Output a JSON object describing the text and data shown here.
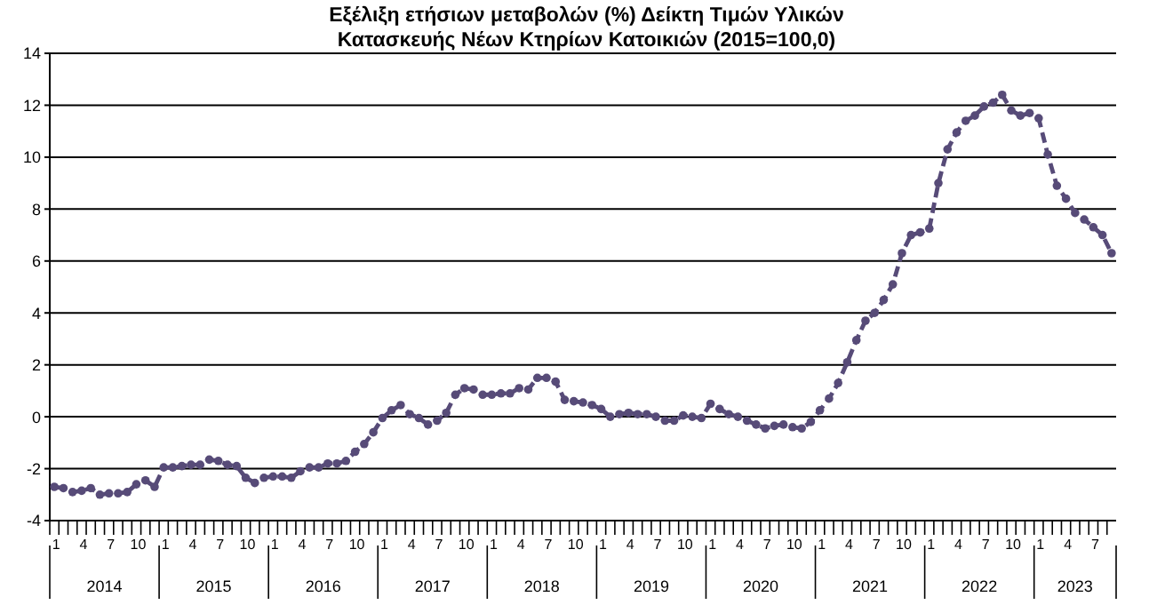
{
  "chart_data": {
    "type": "line",
    "title": "Εξέλιξη ετήσιων μεταβολών (%) Δείκτη Τιμών Υλικών",
    "subtitle": "Κατασκευής Νέων Κτηρίων Κατοικιών (2015=100,0)",
    "categories": [
      "1",
      null,
      null,
      "4",
      null,
      null,
      "7",
      null,
      null,
      "10",
      null,
      null,
      "1",
      null,
      null,
      "4",
      null,
      null,
      "7",
      null,
      null,
      "10",
      null,
      null,
      "1",
      null,
      null,
      "4",
      null,
      null,
      "7",
      null,
      null,
      "10",
      null,
      null,
      "1",
      null,
      null,
      "4",
      null,
      null,
      "7",
      null,
      null,
      "10",
      null,
      null,
      "1",
      null,
      null,
      "4",
      null,
      null,
      "7",
      null,
      null,
      "10",
      null,
      null,
      "1",
      null,
      null,
      "4",
      null,
      null,
      "7",
      null,
      null,
      "10",
      null,
      null,
      "1",
      null,
      null,
      "4",
      null,
      null,
      "7",
      null,
      null,
      "10",
      null,
      null,
      "1",
      null,
      null,
      "4",
      null,
      null,
      "7",
      null,
      null,
      "10",
      null,
      null,
      "1",
      null,
      null,
      "4",
      null,
      null,
      "7",
      null,
      null,
      "10",
      null,
      null,
      "1",
      null,
      null,
      "4",
      null,
      null,
      "7",
      null,
      null
    ],
    "annotations": [
      "2014",
      "2015",
      "2016",
      "2017",
      "2018",
      "2019",
      "2020",
      "2021",
      "2022",
      "2023"
    ],
    "series": [
      {
        "color": "#574b78",
        "values": [
          -2.7,
          -2.75,
          -2.9,
          -2.85,
          -2.75,
          -3.0,
          -2.95,
          -2.95,
          -2.9,
          -2.6,
          -2.45,
          -2.7,
          -1.95,
          -1.95,
          -1.9,
          -1.85,
          -1.85,
          -1.65,
          -1.7,
          -1.85,
          -1.9,
          -2.35,
          -2.55,
          -2.35,
          -2.3,
          -2.3,
          -2.35,
          -2.1,
          -1.95,
          -1.95,
          -1.8,
          -1.8,
          -1.7,
          -1.35,
          -1.05,
          -0.6,
          -0.05,
          0.25,
          0.45,
          0.1,
          -0.05,
          -0.3,
          -0.15,
          0.15,
          0.85,
          1.1,
          1.05,
          0.85,
          0.85,
          0.9,
          0.9,
          1.1,
          1.05,
          1.5,
          1.5,
          1.35,
          0.65,
          0.6,
          0.55,
          0.45,
          0.3,
          0.0,
          0.1,
          0.15,
          0.1,
          0.1,
          0.0,
          -0.15,
          -0.15,
          0.05,
          0.0,
          -0.05,
          0.5,
          0.3,
          0.1,
          0.0,
          -0.15,
          -0.3,
          -0.45,
          -0.35,
          -0.3,
          -0.4,
          -0.45,
          -0.2,
          0.25,
          0.7,
          1.3,
          2.1,
          2.95,
          3.7,
          4.0,
          4.5,
          5.1,
          6.3,
          7.0,
          7.1,
          7.25,
          9.0,
          10.3,
          10.95,
          11.4,
          11.6,
          11.95,
          12.1,
          12.4,
          11.8,
          11.6,
          11.7,
          11.5,
          10.1,
          8.9,
          8.4,
          7.85,
          7.6,
          7.3,
          7.0,
          6.3
        ]
      }
    ],
    "ylim": [
      -4,
      14
    ],
    "yticks": [
      -4,
      -2,
      0,
      2,
      4,
      6,
      8,
      10,
      12,
      14
    ],
    "grid": "y",
    "legend": false,
    "marker": "circle",
    "line_style": "dashed"
  }
}
